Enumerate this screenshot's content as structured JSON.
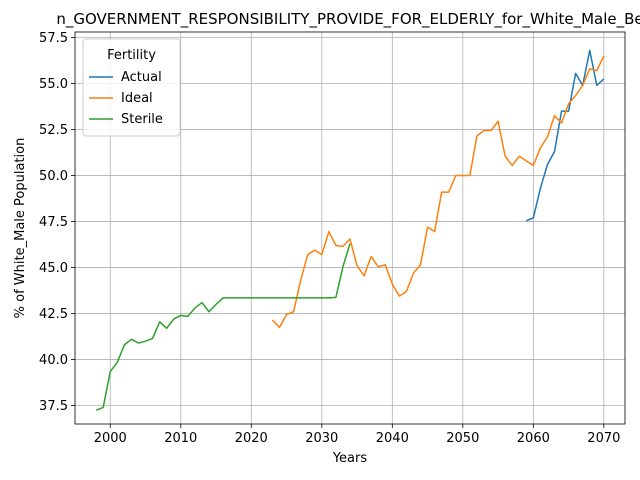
{
  "chart_data": {
    "type": "line",
    "title": "n_GOVERNMENT_RESPONSIBILITY_PROVIDE_FOR_ELDERLY_for_White_Male_Be",
    "xlabel": "Years",
    "ylabel": "% of White_Male Population",
    "xlim": [
      1995,
      2073
    ],
    "ylim": [
      36.5,
      57.8
    ],
    "xticks": [
      2000,
      2010,
      2020,
      2030,
      2040,
      2050,
      2060,
      2070
    ],
    "yticks": [
      37.5,
      40.0,
      42.5,
      45.0,
      47.5,
      50.0,
      52.5,
      55.0,
      57.5
    ],
    "ytick_labels": [
      "37.5",
      "40.0",
      "42.5",
      "45.0",
      "47.5",
      "50.0",
      "52.5",
      "55.0",
      "57.5"
    ],
    "grid": true,
    "legend": {
      "title": "Fertility",
      "placement": "top-left"
    },
    "series": [
      {
        "name": "Actual",
        "color": "#1f77b4",
        "x": [
          2059,
          2060,
          2061,
          2062,
          2063,
          2064,
          2065,
          2066,
          2067,
          2068,
          2069,
          2070
        ],
        "y": [
          47.55,
          47.7,
          49.3,
          50.6,
          51.3,
          53.5,
          53.5,
          55.55,
          54.9,
          56.8,
          54.9,
          55.25
        ]
      },
      {
        "name": "Ideal",
        "color": "#ff7f0e",
        "x": [
          2023,
          2024,
          2025,
          2026,
          2027,
          2028,
          2029,
          2030,
          2031,
          2032,
          2033,
          2034,
          2035,
          2036,
          2037,
          2038,
          2039,
          2040,
          2041,
          2042,
          2043,
          2044,
          2045,
          2046,
          2047,
          2048,
          2049,
          2050,
          2051,
          2052,
          2053,
          2054,
          2055,
          2056,
          2057,
          2058,
          2059,
          2060,
          2061,
          2062,
          2063,
          2064,
          2065,
          2066,
          2067,
          2068,
          2069,
          2070
        ],
        "y": [
          42.15,
          41.75,
          42.45,
          42.6,
          44.3,
          45.7,
          45.95,
          45.7,
          46.95,
          46.2,
          46.15,
          46.55,
          45.1,
          44.55,
          45.6,
          45.05,
          45.15,
          44.1,
          43.45,
          43.7,
          44.7,
          45.15,
          47.2,
          46.95,
          49.1,
          49.1,
          50.0,
          50.0,
          50.0,
          52.15,
          52.45,
          52.45,
          52.95,
          51.05,
          50.55,
          51.05,
          50.8,
          50.55,
          51.5,
          52.1,
          53.25,
          52.85,
          53.9,
          54.35,
          54.9,
          55.8,
          55.7,
          56.5
        ]
      },
      {
        "name": "Sterile",
        "color": "#2ca02c",
        "x": [
          1998,
          1999,
          2000,
          2001,
          2002,
          2003,
          2004,
          2005,
          2006,
          2007,
          2008,
          2009,
          2010,
          2011,
          2012,
          2013,
          2014,
          2015,
          2016,
          2017,
          2018,
          2019,
          2020,
          2021,
          2022,
          2023,
          2024,
          2025,
          2026,
          2027,
          2028,
          2029,
          2030,
          2031,
          2032,
          2033,
          2034
        ],
        "y": [
          37.25,
          37.4,
          39.35,
          39.85,
          40.8,
          41.1,
          40.9,
          41.0,
          41.15,
          42.05,
          41.7,
          42.2,
          42.4,
          42.35,
          42.8,
          43.1,
          42.6,
          43.0,
          43.35,
          43.35,
          43.35,
          43.35,
          43.35,
          43.35,
          43.35,
          43.35,
          43.35,
          43.35,
          43.35,
          43.35,
          43.35,
          43.35,
          43.35,
          43.35,
          43.38,
          45.05,
          46.3
        ]
      }
    ]
  }
}
